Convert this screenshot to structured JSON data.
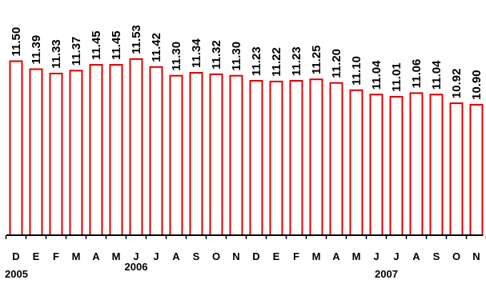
{
  "chart_data": {
    "type": "bar",
    "categories": [
      "D",
      "E",
      "F",
      "M",
      "A",
      "M",
      "J",
      "J",
      "A",
      "S",
      "O",
      "N",
      "D",
      "E",
      "F",
      "M",
      "A",
      "M",
      "J",
      "J",
      "A",
      "S",
      "O",
      "N"
    ],
    "values": [
      11.5,
      11.39,
      11.33,
      11.37,
      11.45,
      11.45,
      11.53,
      11.42,
      11.3,
      11.34,
      11.32,
      11.3,
      11.23,
      11.22,
      11.23,
      11.25,
      11.2,
      11.1,
      11.04,
      11.01,
      11.06,
      11.04,
      10.92,
      10.9
    ],
    "value_labels": [
      "11.50",
      "11.39",
      "11.33",
      "11.37",
      "11.45",
      "11.45",
      "11.53",
      "11.42",
      "11.30",
      "11.34",
      "11.32",
      "11.30",
      "11.23",
      "11.22",
      "11.23",
      "11.25",
      "11.20",
      "11.10",
      "11.04",
      "11.01",
      "11.06",
      "11.04",
      "10.92",
      "10.90"
    ],
    "year_labels": [
      {
        "text": "2005",
        "category_index": 0
      },
      {
        "text": "2006",
        "category_index": 6
      },
      {
        "text": "2007",
        "category_index": 18
      }
    ],
    "ylim": [
      9.1,
      11.55
    ],
    "bar_fill": "#ffffff",
    "bar_stroke": "#e00000",
    "axis_color": "#000000",
    "grid": false,
    "legend": "none",
    "title": "",
    "xlabel": "",
    "ylabel": ""
  }
}
